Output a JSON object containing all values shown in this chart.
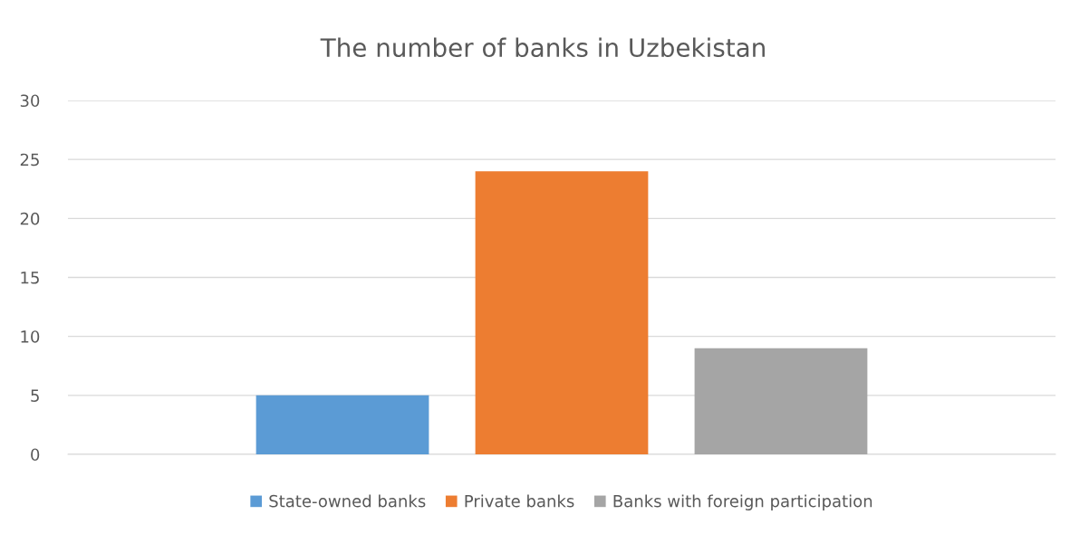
{
  "chart_data": {
    "type": "bar",
    "title": "The number of banks in Uzbekistan",
    "categories": [
      null
    ],
    "series": [
      {
        "name": "State-owned banks",
        "color": "#5b9bd5",
        "values": [
          5
        ]
      },
      {
        "name": "Private banks",
        "color": "#ed7d31",
        "values": [
          24
        ]
      },
      {
        "name": "Banks with foreign participation",
        "color": "#a5a5a5",
        "values": [
          9
        ]
      }
    ],
    "ylim": [
      0,
      30
    ],
    "yticks": [
      0,
      5,
      10,
      15,
      20,
      25,
      30
    ],
    "grid": "y",
    "legend": "bottom"
  }
}
